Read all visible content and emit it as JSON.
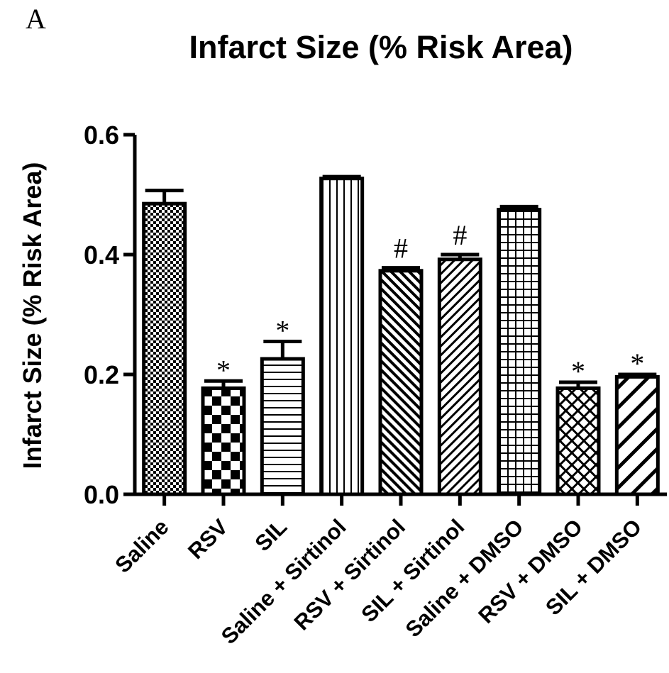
{
  "panel_letter": "A",
  "chart_data": {
    "type": "bar",
    "title": "Infarct Size (% Risk Area)",
    "xlabel": "",
    "ylabel": "Infarct Size (% Risk Area)",
    "ylim": [
      0,
      0.6
    ],
    "yticks": [
      0.0,
      0.2,
      0.4,
      0.6
    ],
    "ytick_labels": [
      "0.0",
      "0.2",
      "0.4",
      "0.6"
    ],
    "grid": false,
    "legend": "none",
    "categories": [
      "Saline",
      "RSV",
      "SIL",
      "Saline + Sirtinol",
      "RSV + Sirtinol",
      "SIL + Sirtinol",
      "Saline + DMSO",
      "RSV + DMSO",
      "SIL + DMSO"
    ],
    "values": [
      0.485,
      0.177,
      0.226,
      0.527,
      0.373,
      0.392,
      0.475,
      0.177,
      0.196
    ],
    "errors": [
      0.022,
      0.012,
      0.029,
      0.003,
      0.005,
      0.008,
      0.005,
      0.01,
      0.004
    ],
    "annotations": [
      "",
      "*",
      "*",
      "",
      "#",
      "#",
      "",
      "*",
      "*"
    ],
    "patterns": [
      "fine-check",
      "checkerboard",
      "horizontal-lines",
      "vertical-lines",
      "diagonal-fine-up",
      "diagonal-fine-down",
      "grid",
      "crosshatch-diagonal",
      "diagonal-coarse-down"
    ],
    "colors": {
      "bar_stroke": "#000000",
      "bar_fill": "#ffffff",
      "pattern": "#000000"
    }
  }
}
